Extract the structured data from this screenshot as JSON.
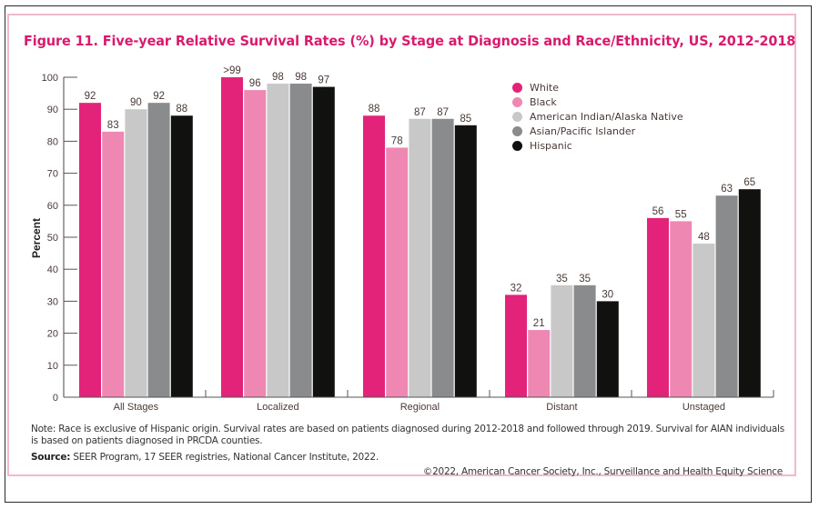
{
  "chart_data": {
    "type": "bar",
    "title": "Figure 11. Five-year Relative Survival Rates (%) by Stage at Diagnosis and Race/Ethnicity, US, 2012-2018",
    "xlabel": "",
    "ylabel": "Percent",
    "ylim": [
      0,
      100
    ],
    "yticks": [
      0,
      10,
      20,
      30,
      40,
      50,
      60,
      70,
      80,
      90,
      100
    ],
    "grid": false,
    "legend_position": "top-right",
    "categories": [
      "All Stages",
      "Localized",
      "Regional",
      "Distant",
      "Unstaged"
    ],
    "series": [
      {
        "name": "White",
        "color": "#e3237a",
        "values": [
          92,
          100,
          88,
          32,
          56
        ],
        "labels": [
          "92",
          ">99",
          "88",
          "32",
          "56"
        ]
      },
      {
        "name": "Black",
        "color": "#ee88b2",
        "values": [
          83,
          96,
          78,
          21,
          55
        ],
        "labels": [
          "83",
          "96",
          "78",
          "21",
          "55"
        ]
      },
      {
        "name": "American Indian/Alaska Native",
        "color": "#c8c8c8",
        "values": [
          90,
          98,
          87,
          35,
          48
        ],
        "labels": [
          "90",
          "98",
          "87",
          "35",
          "48"
        ]
      },
      {
        "name": "Asian/Pacific Islander",
        "color": "#898b8d",
        "values": [
          92,
          98,
          87,
          35,
          63
        ],
        "labels": [
          "92",
          "98",
          "87",
          "35",
          "63"
        ]
      },
      {
        "name": "Hispanic",
        "color": "#111110",
        "values": [
          88,
          97,
          85,
          30,
          65
        ],
        "labels": [
          "88",
          "97",
          "85",
          "30",
          "65"
        ]
      }
    ]
  },
  "note": {
    "text": "Note: Race is exclusive of Hispanic origin. Survival rates are based on patients diagnosed during 2012-2018 and followed through 2019. Survival for AIAN individuals is based on patients diagnosed in PRCDA counties."
  },
  "source": {
    "label": "Source:",
    "text": " SEER Program, 17 SEER registries, National Cancer Institute, 2022."
  },
  "copyright": "©2022, American Cancer Society, Inc., Surveillance and Health Equity  Science",
  "colors": {
    "title": "#d91a6d",
    "panel_border": "#efb9cf"
  }
}
